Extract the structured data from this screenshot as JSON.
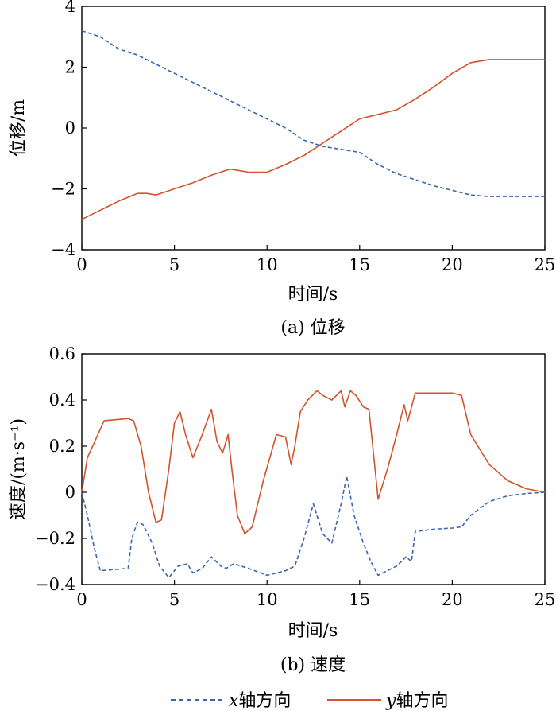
{
  "colors": {
    "x_series": "#3a66b0",
    "y_series": "#d2532d",
    "axis": "#000000"
  },
  "legend": {
    "x_label_var": "x",
    "x_label_text": "轴方向",
    "y_label_var": "y",
    "y_label_text": "轴方向"
  },
  "chart_data": [
    {
      "type": "line",
      "caption": "(a) 位移",
      "xlabel": "时间/s",
      "ylabel": "位移/m",
      "xlim": [
        0,
        25
      ],
      "ylim": [
        -4,
        4
      ],
      "xticks": [
        "0",
        "5",
        "10",
        "15",
        "20",
        "25"
      ],
      "yticks": [
        "4",
        "2",
        "0",
        "−2",
        "−4"
      ],
      "grid": false,
      "series": [
        {
          "name": "x轴方向",
          "style": "dashed",
          "x": [
            0,
            1,
            2,
            3,
            4,
            5,
            6,
            7,
            8,
            9,
            10,
            11,
            12,
            13,
            14,
            15,
            16,
            17,
            18,
            19,
            20,
            21,
            22,
            23,
            24,
            25
          ],
          "y": [
            3.2,
            3.0,
            2.6,
            2.4,
            2.1,
            1.8,
            1.5,
            1.2,
            0.9,
            0.6,
            0.3,
            0.0,
            -0.4,
            -0.6,
            -0.7,
            -0.8,
            -1.2,
            -1.5,
            -1.7,
            -1.9,
            -2.05,
            -2.2,
            -2.25,
            -2.25,
            -2.25,
            -2.25
          ]
        },
        {
          "name": "y轴方向",
          "style": "solid",
          "x": [
            0,
            1,
            2,
            3,
            3.5,
            4,
            5,
            6,
            7,
            8,
            9,
            10,
            11,
            12,
            13,
            14,
            15,
            16,
            17,
            18,
            19,
            20,
            21,
            22,
            23,
            24,
            25
          ],
          "y": [
            -3.0,
            -2.7,
            -2.4,
            -2.15,
            -2.15,
            -2.2,
            -2.0,
            -1.8,
            -1.55,
            -1.35,
            -1.45,
            -1.45,
            -1.2,
            -0.9,
            -0.5,
            -0.1,
            0.3,
            0.45,
            0.6,
            0.95,
            1.35,
            1.8,
            2.15,
            2.25,
            2.25,
            2.25,
            2.25
          ]
        }
      ]
    },
    {
      "type": "line",
      "caption": "(b) 速度",
      "xlabel": "时间/s",
      "ylabel": "速度/(m·s⁻¹)",
      "xlim": [
        0,
        25
      ],
      "ylim": [
        -0.4,
        0.6
      ],
      "xticks": [
        "0",
        "5",
        "10",
        "15",
        "20",
        "25"
      ],
      "yticks": [
        "0.6",
        "0.4",
        "0.2",
        "0",
        "−0.2",
        "−0.4"
      ],
      "grid": false,
      "series": [
        {
          "name": "x轴方向",
          "style": "dashed",
          "x": [
            0,
            0.3,
            0.7,
            1.0,
            2.5,
            2.7,
            3.0,
            3.3,
            3.8,
            4.2,
            4.7,
            5.2,
            5.7,
            6.0,
            6.5,
            7.0,
            7.5,
            7.8,
            8.2,
            9.0,
            10.0,
            10.5,
            11.0,
            11.5,
            12.0,
            12.5,
            13.0,
            13.5,
            14.0,
            14.3,
            14.7,
            15.2,
            15.6,
            16.0,
            16.5,
            17.0,
            17.5,
            17.8,
            18.0,
            18.5,
            19.0,
            20.0,
            20.5,
            21.0,
            22.0,
            23.0,
            24.0,
            25.0
          ],
          "y": [
            0.0,
            -0.1,
            -0.25,
            -0.34,
            -0.33,
            -0.2,
            -0.13,
            -0.14,
            -0.22,
            -0.32,
            -0.37,
            -0.32,
            -0.31,
            -0.35,
            -0.33,
            -0.28,
            -0.32,
            -0.33,
            -0.31,
            -0.33,
            -0.36,
            -0.35,
            -0.34,
            -0.32,
            -0.2,
            -0.05,
            -0.18,
            -0.22,
            -0.05,
            0.07,
            -0.1,
            -0.22,
            -0.3,
            -0.36,
            -0.34,
            -0.32,
            -0.28,
            -0.3,
            -0.17,
            -0.165,
            -0.16,
            -0.155,
            -0.15,
            -0.1,
            -0.04,
            -0.015,
            -0.005,
            0.0
          ]
        },
        {
          "name": "y轴方向",
          "style": "solid",
          "x": [
            0,
            0.3,
            0.7,
            1.2,
            2.5,
            2.8,
            3.2,
            3.6,
            4.0,
            4.3,
            4.7,
            5.0,
            5.3,
            5.6,
            6.0,
            6.5,
            7.0,
            7.3,
            7.6,
            7.9,
            8.1,
            8.4,
            8.8,
            9.2,
            9.8,
            10.5,
            11.0,
            11.3,
            11.5,
            11.8,
            12.2,
            12.7,
            13.0,
            13.5,
            14.0,
            14.2,
            14.5,
            14.8,
            15.2,
            15.5,
            16.0,
            16.5,
            17.0,
            17.4,
            17.6,
            18.0,
            19.0,
            20.0,
            20.5,
            21.0,
            22.0,
            23.0,
            24.0,
            25.0
          ],
          "y": [
            0.0,
            0.15,
            0.22,
            0.31,
            0.32,
            0.31,
            0.2,
            0.0,
            -0.13,
            -0.12,
            0.1,
            0.3,
            0.35,
            0.25,
            0.15,
            0.25,
            0.36,
            0.22,
            0.17,
            0.25,
            0.1,
            -0.1,
            -0.18,
            -0.15,
            0.05,
            0.25,
            0.24,
            0.12,
            0.2,
            0.35,
            0.4,
            0.44,
            0.42,
            0.4,
            0.44,
            0.37,
            0.44,
            0.42,
            0.37,
            0.36,
            -0.03,
            0.1,
            0.25,
            0.38,
            0.31,
            0.43,
            0.43,
            0.43,
            0.42,
            0.25,
            0.12,
            0.05,
            0.015,
            0.0
          ]
        }
      ]
    }
  ]
}
